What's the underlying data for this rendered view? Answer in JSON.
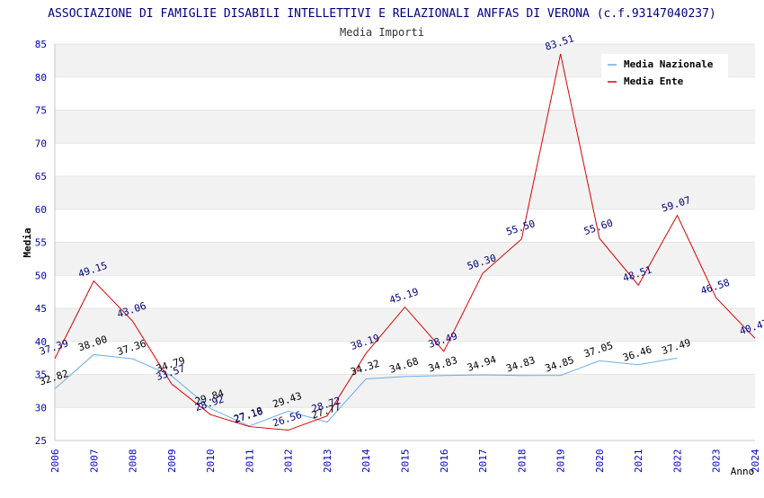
{
  "chart_data": {
    "type": "line",
    "title": "ASSOCIAZIONE DI FAMIGLIE DISABILI INTELLETTIVI E RELAZIONALI ANFFAS DI VERONA (c.f.93147040237)",
    "subtitle": "Media Importi",
    "xlabel": "Anno",
    "ylabel": "Media",
    "ylim": [
      25,
      85
    ],
    "yticks": [
      25,
      30,
      35,
      40,
      45,
      50,
      55,
      60,
      65,
      70,
      75,
      80,
      85
    ],
    "categories": [
      "2006",
      "2007",
      "2008",
      "2009",
      "2010",
      "2011",
      "2012",
      "2013",
      "2014",
      "2015",
      "2016",
      "2017",
      "2018",
      "2019",
      "2020",
      "2021",
      "2022",
      "2023",
      "2024"
    ],
    "legend_position": "top-right",
    "series": [
      {
        "name": "Media Nazionale",
        "color": "#6aaee8",
        "label_color": "#000000",
        "values": [
          32.82,
          38.0,
          37.36,
          34.79,
          29.84,
          27.18,
          29.43,
          27.77,
          34.32,
          34.68,
          34.83,
          34.94,
          34.83,
          34.85,
          37.05,
          36.46,
          37.49,
          null,
          null
        ],
        "labels": [
          "32.82",
          "38.00",
          "37.36",
          "34.79",
          "29.84",
          "27.18",
          "29.43",
          "27.77",
          "34.32",
          "34.68",
          "34.83",
          "34.94",
          "34.83",
          "34.85",
          "37.05",
          "36.46",
          "37.49",
          null,
          null
        ]
      },
      {
        "name": "Media Ente",
        "color": "#dd0000",
        "label_color": "#000080",
        "values": [
          37.39,
          49.15,
          43.06,
          33.57,
          28.92,
          27.1,
          26.56,
          28.72,
          38.19,
          45.19,
          38.49,
          50.3,
          55.5,
          83.51,
          55.6,
          48.51,
          59.07,
          46.58,
          40.47
        ],
        "labels": [
          "37.39",
          "49.15",
          "43.06",
          "33.57",
          "28.92",
          "27.10",
          "26.56",
          "28.72",
          "38.19",
          "45.19",
          "38.49",
          "50.30",
          "55.50",
          "83.51",
          "55.60",
          "48.51",
          "59.07",
          "46.58",
          "40.47"
        ]
      }
    ]
  },
  "colors": {
    "band": "#f2f2f2",
    "grid": "#e4e4e4",
    "axis_text": "#0000bb",
    "title_text": "#000080",
    "subtitle_text": "#333333"
  }
}
